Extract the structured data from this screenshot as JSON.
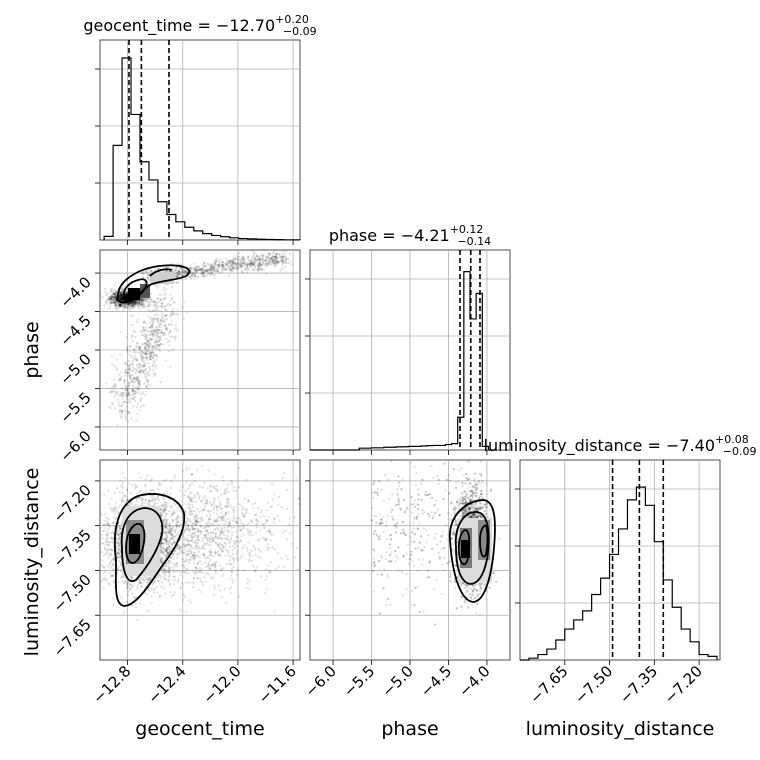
{
  "chart_data": {
    "type": "corner",
    "parameters": [
      "geocent_time",
      "phase",
      "luminosity_distance"
    ],
    "titles": [
      {
        "param": "geocent_time",
        "label": "geocent_time = ",
        "median": "−12.70",
        "plus": "+0.20",
        "minus": "−0.09"
      },
      {
        "param": "phase",
        "label": "phase = ",
        "median": "−4.21",
        "plus": "+0.12",
        "minus": "−0.14"
      },
      {
        "param": "luminosity_distance",
        "label": "luminosity_distance = ",
        "median": "−7.40",
        "plus": "+0.08",
        "minus": "−0.09"
      }
    ],
    "axes": {
      "geocent_time": {
        "range": [
          -13.0,
          -11.55
        ],
        "ticks": [
          -12.8,
          -12.4,
          -12.0,
          -11.6
        ],
        "tick_labels": [
          "−12.8",
          "−12.4",
          "−12.0",
          "−11.6"
        ]
      },
      "phase": {
        "range": [
          -6.3,
          -3.7
        ],
        "ticks": [
          -6.0,
          -5.5,
          -5.0,
          -4.5,
          -4.0
        ],
        "tick_labels": [
          "−6.0",
          "−5.5",
          "−5.0",
          "−4.5",
          "−4.0"
        ]
      },
      "luminosity_distance": {
        "range": [
          -7.8,
          -7.13
        ],
        "ticks": [
          -7.65,
          -7.5,
          -7.35,
          -7.2
        ],
        "tick_labels": [
          "−7.65",
          "−7.50",
          "−7.35",
          "−7.20"
        ]
      }
    },
    "histograms": {
      "geocent_time": {
        "edges": [
          -12.97,
          -12.905,
          -12.84,
          -12.775,
          -12.71,
          -12.645,
          -12.58,
          -12.515,
          -12.45,
          -12.385,
          -12.32,
          -12.255,
          -12.19,
          -12.125,
          -12.06,
          -11.995,
          -11.93,
          -11.865,
          -11.8,
          -11.735,
          -11.67,
          -11.605,
          -11.54
        ],
        "counts": [
          0.02,
          0.52,
          1.0,
          0.69,
          0.43,
          0.33,
          0.21,
          0.14,
          0.1,
          0.07,
          0.05,
          0.035,
          0.025,
          0.018,
          0.012,
          0.008,
          0.006,
          0.004,
          0.003,
          0.002,
          0.001,
          0.001
        ],
        "quantiles": [
          -12.79,
          -12.7,
          -12.5
        ]
      },
      "phase": {
        "edges": [
          -6.3,
          -6.22,
          -6.14,
          -6.06,
          -5.98,
          -5.9,
          -5.82,
          -5.74,
          -5.66,
          -5.58,
          -5.5,
          -5.42,
          -5.34,
          -5.26,
          -5.18,
          -5.1,
          -5.02,
          -4.94,
          -4.86,
          -4.78,
          -4.7,
          -4.62,
          -4.54,
          -4.46,
          -4.38,
          -4.3,
          -4.22,
          -4.14,
          -4.06,
          -3.98,
          -3.9
        ],
        "counts": [
          0,
          0,
          0,
          0,
          0,
          0,
          0,
          0,
          0.01,
          0.01,
          0.012,
          0.012,
          0.015,
          0.015,
          0.017,
          0.018,
          0.02,
          0.02,
          0.022,
          0.024,
          0.025,
          0.025,
          0.03,
          0.035,
          0.18,
          0.98,
          0.72,
          0.86,
          0.02,
          0
        ],
        "quantiles": [
          -4.35,
          -4.21,
          -4.09
        ]
      },
      "luminosity_distance": {
        "edges": [
          -7.8,
          -7.77,
          -7.74,
          -7.71,
          -7.68,
          -7.65,
          -7.62,
          -7.59,
          -7.56,
          -7.53,
          -7.5,
          -7.47,
          -7.44,
          -7.41,
          -7.38,
          -7.35,
          -7.32,
          -7.29,
          -7.26,
          -7.23,
          -7.2,
          -7.17,
          -7.14
        ],
        "counts": [
          0,
          0.01,
          0.03,
          0.06,
          0.11,
          0.17,
          0.22,
          0.27,
          0.36,
          0.45,
          0.58,
          0.72,
          0.88,
          0.95,
          0.85,
          0.65,
          0.44,
          0.29,
          0.17,
          0.1,
          0.03,
          0.02
        ],
        "quantiles": [
          -7.49,
          -7.4,
          -7.32
        ]
      }
    },
    "scatter_samples": {
      "phase_vs_geocent_time": {
        "count": 2800
      },
      "luminosity_distance_vs_geocent_time": {
        "count": 3200
      },
      "luminosity_distance_vs_phase": {
        "count": 3000
      }
    },
    "grid": true
  }
}
